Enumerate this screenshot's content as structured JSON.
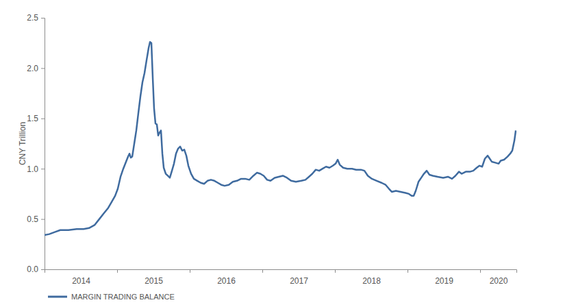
{
  "chart_data": {
    "type": "line",
    "y_label": "CNY Trillion",
    "legend": "bottom-left",
    "grid": false,
    "x": [
      2014.0,
      2014.066,
      2014.142,
      2014.217,
      2014.33,
      2014.443,
      2014.538,
      2014.613,
      2014.689,
      2014.755,
      2014.821,
      2014.877,
      2014.925,
      2014.972,
      2015.009,
      2015.047,
      2015.085,
      2015.123,
      2015.151,
      2015.17,
      2015.189,
      2015.208,
      2015.236,
      2015.264,
      2015.292,
      2015.321,
      2015.349,
      2015.377,
      2015.406,
      2015.434,
      2015.453,
      2015.472,
      2015.491,
      2015.509,
      2015.528,
      2015.547,
      2015.566,
      2015.585,
      2015.604,
      2015.623,
      2015.642,
      2015.67,
      2015.698,
      2015.726,
      2015.755,
      2015.783,
      2015.811,
      2015.84,
      2015.868,
      2015.896,
      2015.925,
      2015.953,
      2015.981,
      2016.019,
      2016.057,
      2016.104,
      2016.151,
      2016.198,
      2016.245,
      2016.292,
      2016.34,
      2016.387,
      2016.434,
      2016.481,
      2016.538,
      2016.594,
      2016.651,
      2016.708,
      2016.764,
      2016.821,
      2016.877,
      2016.925,
      2016.972,
      2017.019,
      2017.066,
      2017.113,
      2017.17,
      2017.226,
      2017.283,
      2017.34,
      2017.396,
      2017.462,
      2017.538,
      2017.594,
      2017.642,
      2017.689,
      2017.736,
      2017.783,
      2017.83,
      2017.877,
      2017.925,
      2017.972,
      2018.009,
      2018.038,
      2018.066,
      2018.113,
      2018.17,
      2018.236,
      2018.292,
      2018.358,
      2018.406,
      2018.453,
      2018.509,
      2018.575,
      2018.642,
      2018.698,
      2018.745,
      2018.783,
      2018.84,
      2018.906,
      2018.972,
      2019.019,
      2019.057,
      2019.085,
      2019.113,
      2019.151,
      2019.189,
      2019.226,
      2019.264,
      2019.302,
      2019.349,
      2019.415,
      2019.491,
      2019.557,
      2019.613,
      2019.66,
      2019.708,
      2019.745,
      2019.802,
      2019.858,
      2019.906,
      2019.953,
      2019.991,
      2020.028,
      2020.066,
      2020.104,
      2020.132,
      2020.16,
      2020.208,
      2020.255,
      2020.283,
      2020.33,
      2020.377,
      2020.415,
      2020.443,
      2020.472,
      2020.491
    ],
    "series": [
      {
        "name": "MARGIN TRADING BALANCE",
        "color": "#3f6b9f",
        "values": [
          0.34,
          0.35,
          0.37,
          0.39,
          0.39,
          0.4,
          0.4,
          0.41,
          0.44,
          0.5,
          0.56,
          0.61,
          0.67,
          0.73,
          0.8,
          0.92,
          1.0,
          1.07,
          1.12,
          1.15,
          1.11,
          1.12,
          1.25,
          1.38,
          1.55,
          1.72,
          1.86,
          1.95,
          2.08,
          2.2,
          2.26,
          2.25,
          1.9,
          1.6,
          1.45,
          1.44,
          1.33,
          1.36,
          1.38,
          1.15,
          1.01,
          0.95,
          0.93,
          0.91,
          0.98,
          1.05,
          1.15,
          1.2,
          1.22,
          1.18,
          1.19,
          1.13,
          1.03,
          0.95,
          0.9,
          0.88,
          0.86,
          0.85,
          0.88,
          0.89,
          0.88,
          0.86,
          0.84,
          0.83,
          0.84,
          0.87,
          0.88,
          0.9,
          0.9,
          0.89,
          0.93,
          0.96,
          0.95,
          0.93,
          0.89,
          0.88,
          0.91,
          0.92,
          0.93,
          0.91,
          0.88,
          0.87,
          0.88,
          0.89,
          0.92,
          0.95,
          0.99,
          0.98,
          1.0,
          1.02,
          1.01,
          1.03,
          1.05,
          1.09,
          1.04,
          1.01,
          1.0,
          1.0,
          0.99,
          0.99,
          0.98,
          0.93,
          0.9,
          0.88,
          0.86,
          0.84,
          0.8,
          0.77,
          0.78,
          0.77,
          0.76,
          0.75,
          0.73,
          0.73,
          0.78,
          0.87,
          0.91,
          0.95,
          0.98,
          0.94,
          0.93,
          0.92,
          0.91,
          0.92,
          0.9,
          0.93,
          0.97,
          0.95,
          0.97,
          0.97,
          0.98,
          1.01,
          1.03,
          1.02,
          1.1,
          1.13,
          1.1,
          1.07,
          1.06,
          1.05,
          1.08,
          1.09,
          1.12,
          1.15,
          1.18,
          1.28,
          1.38
        ]
      }
    ],
    "xlim": [
      2014,
      2020.5
    ],
    "xticks": [
      2014,
      2015,
      2016,
      2017,
      2018,
      2019,
      2020
    ],
    "ylim": [
      0,
      2.5
    ],
    "yticks": [
      {
        "value": 0,
        "label": "0.0"
      },
      {
        "value": 0.5,
        "label": "0.5"
      },
      {
        "value": 1,
        "label": "1.0"
      },
      {
        "value": 1.5,
        "label": "1.5"
      },
      {
        "value": 2,
        "label": "2.0"
      },
      {
        "value": 2.5,
        "label": "2.5"
      }
    ]
  }
}
